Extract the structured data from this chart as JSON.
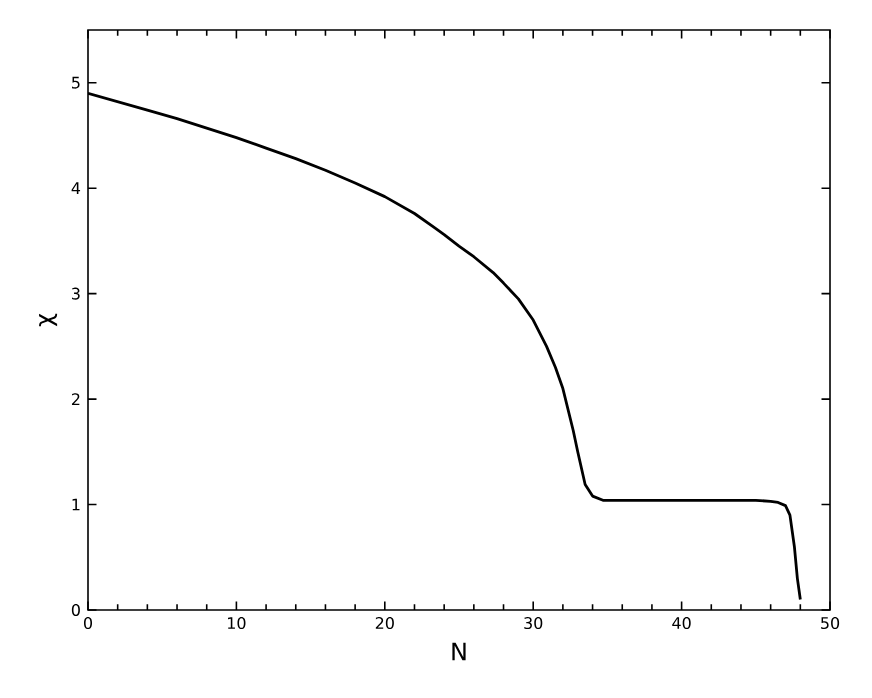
{
  "chart_data": {
    "type": "line",
    "xlabel": "N",
    "ylabel": "χ",
    "xlim": [
      0,
      50
    ],
    "ylim": [
      0,
      5.5
    ],
    "xticks": [
      0,
      10,
      20,
      30,
      40,
      50
    ],
    "yticks": [
      0,
      1,
      2,
      3,
      4,
      5
    ],
    "series": [
      {
        "color": "#000000",
        "x": [
          0,
          2,
          4,
          6,
          8,
          10,
          12,
          14,
          16,
          18,
          20,
          22,
          23.3,
          24,
          25,
          26,
          27.3,
          28,
          29,
          30,
          30.9,
          31.5,
          32,
          32.7,
          33,
          33.5,
          34,
          34.7,
          36,
          38,
          40,
          42,
          44,
          45,
          46,
          46.5,
          47,
          47.3,
          47.6,
          47.8,
          48
        ],
        "values": [
          4.9,
          4.82,
          4.74,
          4.66,
          4.57,
          4.48,
          4.38,
          4.28,
          4.17,
          4.05,
          3.92,
          3.76,
          3.63,
          3.56,
          3.45,
          3.35,
          3.2,
          3.1,
          2.95,
          2.75,
          2.5,
          2.3,
          2.1,
          1.7,
          1.5,
          1.19,
          1.08,
          1.04,
          1.04,
          1.04,
          1.04,
          1.04,
          1.04,
          1.04,
          1.03,
          1.02,
          0.99,
          0.9,
          0.6,
          0.3,
          0.1
        ]
      }
    ]
  }
}
